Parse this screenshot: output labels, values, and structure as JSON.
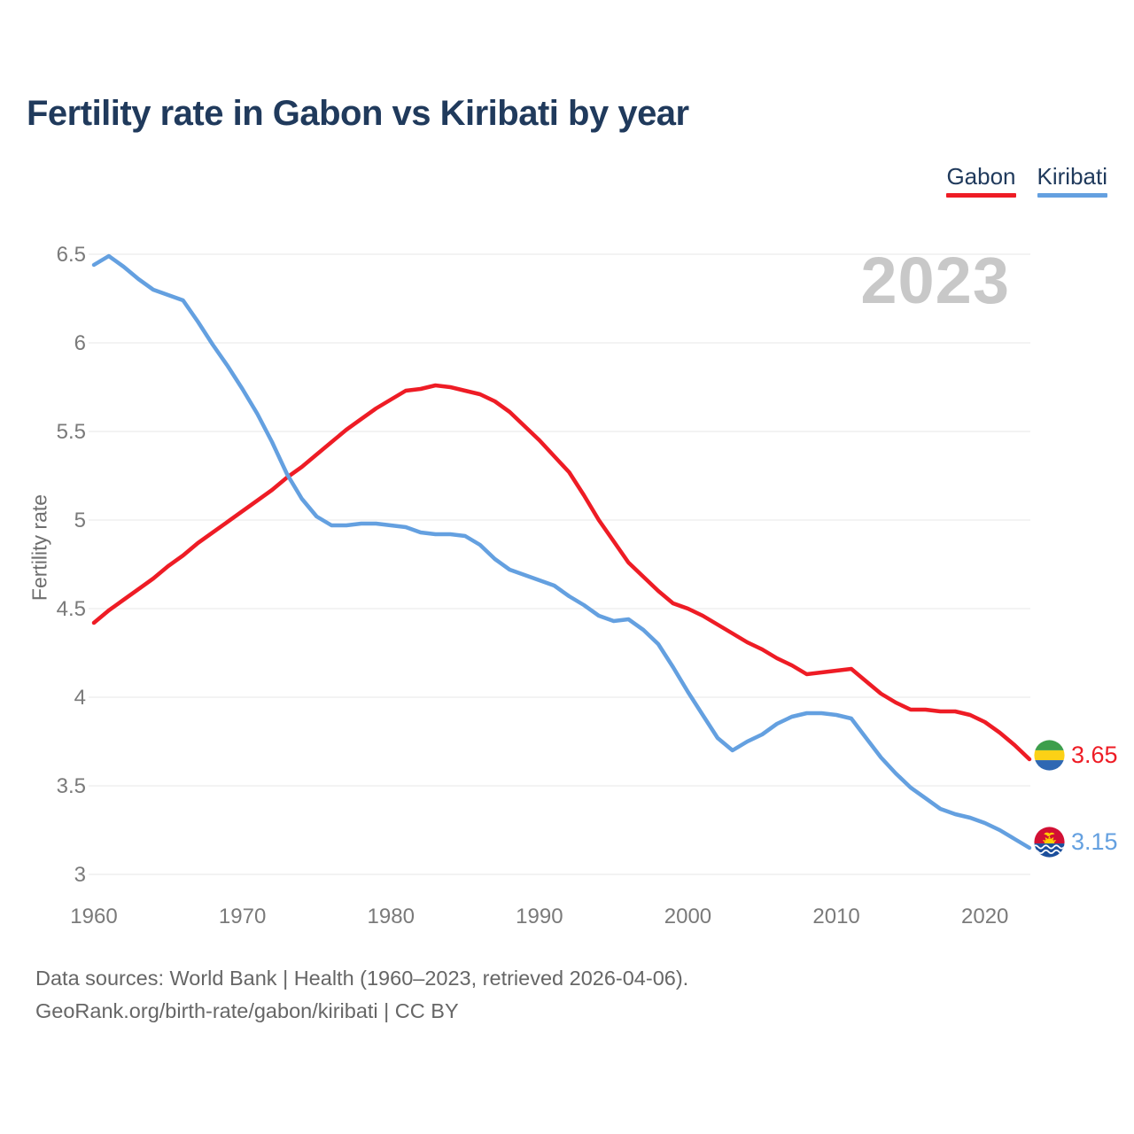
{
  "title": "Fertility rate in Gabon vs Kiribati by year",
  "watermark": "2023",
  "footer": {
    "line1": "Data sources: World Bank | Health (1960–2023, retrieved 2026-04-06).",
    "line2": "GeoRank.org/birth-rate/gabon/kiribati | CC BY"
  },
  "colors": {
    "title_navy": "#203a5c",
    "tick_gray": "#7a7a7a",
    "gridline": "#ececec",
    "watermark_gray": "#c8c8c8"
  },
  "chart_data": {
    "type": "line",
    "title": "Fertility rate in Gabon vs Kiribati by year",
    "xlabel": "",
    "ylabel": "Fertility rate",
    "grid": true,
    "legend_position": "top-right",
    "xlim": [
      1960,
      2023
    ],
    "ylim": [
      3,
      6.5
    ],
    "xticks": [
      1960,
      1970,
      1980,
      1990,
      2000,
      2010,
      2020
    ],
    "yticks": [
      3,
      3.5,
      4,
      4.5,
      5,
      5.5,
      6,
      6.5
    ],
    "x": [
      1960,
      1961,
      1962,
      1963,
      1964,
      1965,
      1966,
      1967,
      1968,
      1969,
      1970,
      1971,
      1972,
      1973,
      1974,
      1975,
      1976,
      1977,
      1978,
      1979,
      1980,
      1981,
      1982,
      1983,
      1984,
      1985,
      1986,
      1987,
      1988,
      1989,
      1990,
      1991,
      1992,
      1993,
      1994,
      1995,
      1996,
      1997,
      1998,
      1999,
      2000,
      2001,
      2002,
      2003,
      2004,
      2005,
      2006,
      2007,
      2008,
      2009,
      2010,
      2011,
      2012,
      2013,
      2014,
      2015,
      2016,
      2017,
      2018,
      2019,
      2020,
      2021,
      2022,
      2023
    ],
    "series": [
      {
        "name": "Gabon",
        "color": "#ee1c25",
        "end_label": "3.65",
        "flag": "gabon",
        "values": [
          4.42,
          4.49,
          4.55,
          4.61,
          4.67,
          4.74,
          4.8,
          4.87,
          4.93,
          4.99,
          5.05,
          5.11,
          5.17,
          5.24,
          5.3,
          5.37,
          5.44,
          5.51,
          5.57,
          5.63,
          5.68,
          5.73,
          5.74,
          5.76,
          5.75,
          5.73,
          5.71,
          5.67,
          5.61,
          5.53,
          5.45,
          5.36,
          5.27,
          5.14,
          5.0,
          4.88,
          4.76,
          4.68,
          4.6,
          4.53,
          4.5,
          4.46,
          4.41,
          4.36,
          4.31,
          4.27,
          4.22,
          4.18,
          4.13,
          4.14,
          4.15,
          4.16,
          4.09,
          4.02,
          3.97,
          3.93,
          3.93,
          3.92,
          3.92,
          3.9,
          3.86,
          3.8,
          3.73,
          3.65
        ]
      },
      {
        "name": "Kiribati",
        "color": "#64a0e0",
        "end_label": "3.15",
        "flag": "kiribati",
        "values": [
          6.44,
          6.49,
          6.43,
          6.36,
          6.3,
          6.27,
          6.24,
          6.12,
          5.99,
          5.87,
          5.74,
          5.6,
          5.44,
          5.26,
          5.12,
          5.02,
          4.97,
          4.97,
          4.98,
          4.98,
          4.97,
          4.96,
          4.93,
          4.92,
          4.92,
          4.91,
          4.86,
          4.78,
          4.72,
          4.69,
          4.66,
          4.63,
          4.57,
          4.52,
          4.46,
          4.43,
          4.44,
          4.38,
          4.3,
          4.17,
          4.03,
          3.9,
          3.77,
          3.7,
          3.75,
          3.79,
          3.85,
          3.89,
          3.91,
          3.91,
          3.9,
          3.88,
          3.77,
          3.66,
          3.57,
          3.49,
          3.43,
          3.37,
          3.34,
          3.32,
          3.29,
          3.25,
          3.2,
          3.15
        ]
      }
    ]
  }
}
